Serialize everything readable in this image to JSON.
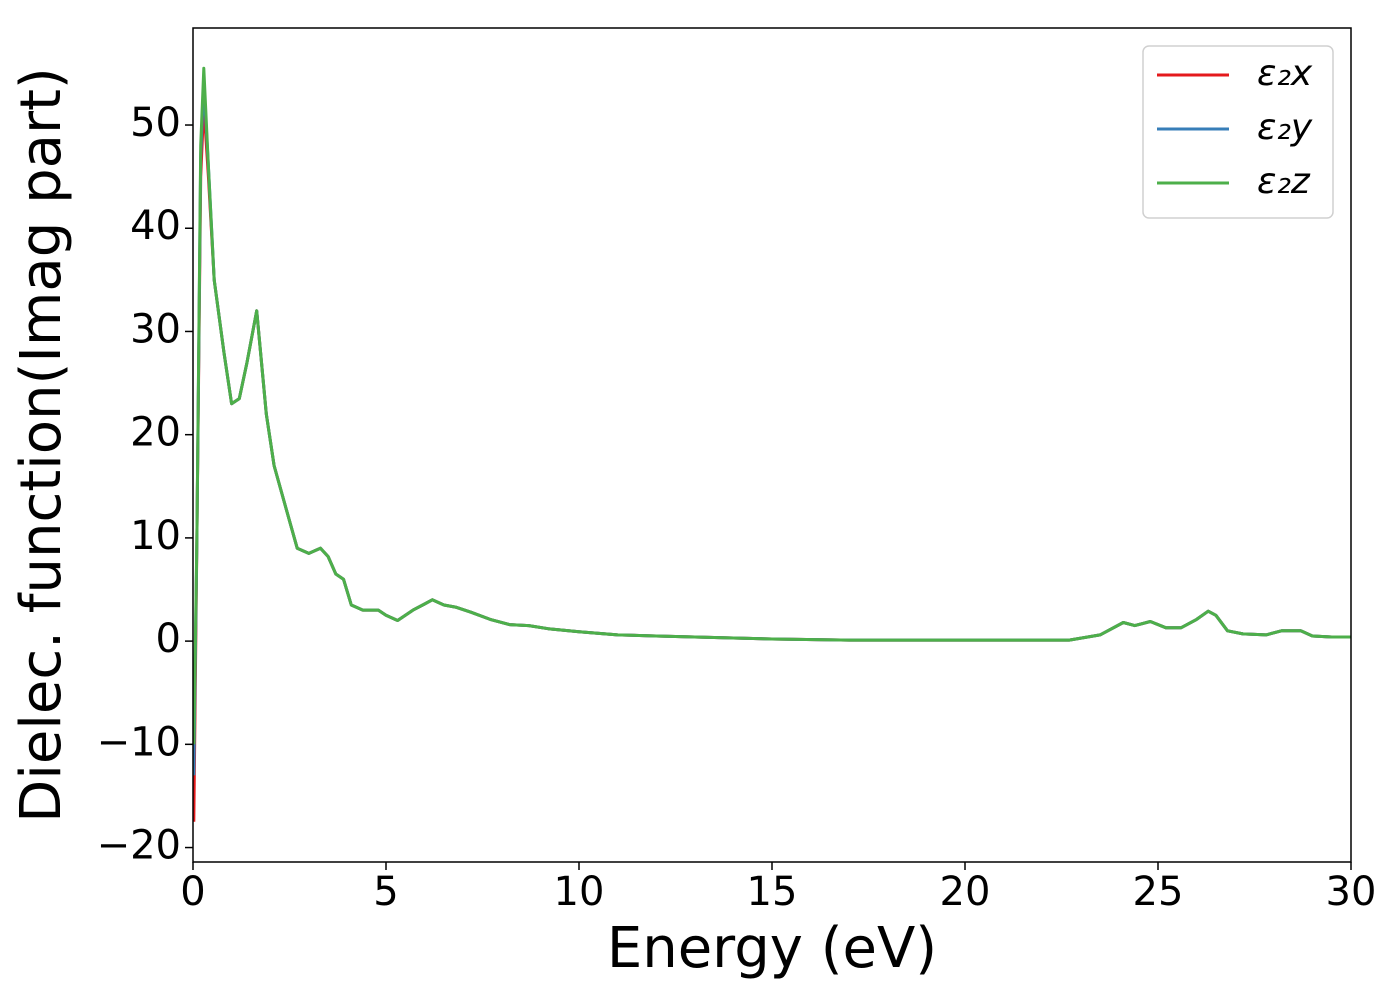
{
  "chart_data": {
    "type": "line",
    "xlabel": "Energy (eV)",
    "ylabel": "Dielec. function(Imag part)",
    "x": [
      0.02,
      0.1,
      0.2,
      0.28,
      0.4,
      0.55,
      0.8,
      1.0,
      1.2,
      1.4,
      1.65,
      1.9,
      2.1,
      2.4,
      2.7,
      3.0,
      3.3,
      3.5,
      3.7,
      3.9,
      4.1,
      4.4,
      4.8,
      5.0,
      5.3,
      5.7,
      6.0,
      6.2,
      6.5,
      6.8,
      7.2,
      7.7,
      8.2,
      8.7,
      9.2,
      10,
      11,
      12,
      13,
      14,
      15,
      17,
      19,
      21,
      22.7,
      23.5,
      24.1,
      24.4,
      24.8,
      25.2,
      25.6,
      26.0,
      26.3,
      26.5,
      26.8,
      27.2,
      27.8,
      28.2,
      28.7,
      29.0,
      29.5,
      30
    ],
    "series": [
      {
        "name": "ε₂x",
        "color": "#e41a1c",
        "values": [
          -17.5,
          10,
          45,
          52,
          45,
          35,
          28,
          23,
          23.5,
          27,
          32,
          22,
          17,
          13,
          9,
          8.5,
          9,
          8.2,
          6.5,
          6,
          3.5,
          3,
          3,
          2.5,
          2,
          3,
          3.6,
          4,
          3.5,
          3.3,
          2.8,
          2.1,
          1.6,
          1.5,
          1.2,
          0.9,
          0.6,
          0.5,
          0.4,
          0.3,
          0.2,
          0.1,
          0.1,
          0.1,
          0.1,
          0.6,
          1.8,
          1.5,
          1.9,
          1.3,
          1.3,
          2.1,
          2.9,
          2.5,
          1.0,
          0.7,
          0.6,
          1.0,
          1.0,
          0.5,
          0.4,
          0.4
        ]
      },
      {
        "name": "ε₂y",
        "color": "#377eb8",
        "values": [
          -13,
          10,
          47,
          54,
          46,
          35,
          28,
          23,
          23.5,
          27,
          32,
          22,
          17,
          13,
          9,
          8.5,
          9,
          8.2,
          6.5,
          6,
          3.5,
          3,
          3,
          2.5,
          2,
          3,
          3.6,
          4,
          3.5,
          3.3,
          2.8,
          2.1,
          1.6,
          1.5,
          1.2,
          0.9,
          0.6,
          0.5,
          0.4,
          0.3,
          0.2,
          0.1,
          0.1,
          0.1,
          0.1,
          0.6,
          1.8,
          1.5,
          1.9,
          1.3,
          1.3,
          2.1,
          2.9,
          2.5,
          1.0,
          0.7,
          0.6,
          1.0,
          1.0,
          0.5,
          0.4,
          0.4
        ]
      },
      {
        "name": "ε₂z",
        "color": "#4daf4a",
        "values": [
          -10,
          10,
          48,
          55.5,
          46,
          35,
          28,
          23,
          23.5,
          27,
          32,
          22,
          17,
          13,
          9,
          8.5,
          9,
          8.2,
          6.5,
          6,
          3.5,
          3,
          3,
          2.5,
          2,
          3,
          3.6,
          4,
          3.5,
          3.3,
          2.8,
          2.1,
          1.6,
          1.5,
          1.2,
          0.9,
          0.6,
          0.5,
          0.4,
          0.3,
          0.2,
          0.1,
          0.1,
          0.1,
          0.1,
          0.6,
          1.8,
          1.5,
          1.9,
          1.3,
          1.3,
          2.1,
          2.9,
          2.5,
          1.0,
          0.7,
          0.6,
          1.0,
          1.0,
          0.5,
          0.4,
          0.4
        ]
      }
    ],
    "xlim": [
      0,
      30
    ],
    "xticks": [
      0,
      5,
      10,
      15,
      20,
      25,
      30
    ],
    "ylim": [
      -21.4,
      59.4
    ],
    "yticks": [
      {
        "value": -20,
        "label": "−20"
      },
      {
        "value": -10,
        "label": "−10"
      },
      0,
      10,
      20,
      30,
      40,
      50
    ],
    "legend": "upper right"
  }
}
